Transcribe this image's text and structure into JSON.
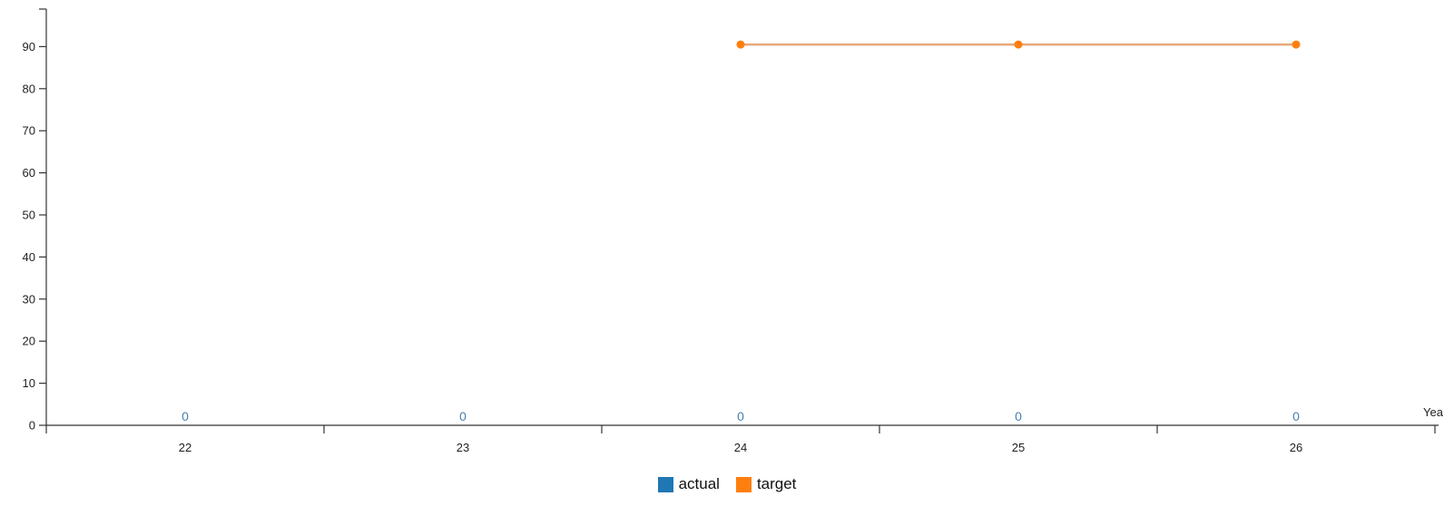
{
  "chart_data": {
    "type": "line",
    "x_label": "Yea",
    "categories": [
      "22",
      "23",
      "24",
      "25",
      "26"
    ],
    "y_ticks": [
      0,
      10,
      20,
      30,
      40,
      50,
      60,
      70,
      80,
      90
    ],
    "ylim": [
      0,
      100
    ],
    "grid": false,
    "legend_position": "bottom-center",
    "series": [
      {
        "name": "actual",
        "color": "#1f77b4",
        "values": [
          0,
          0,
          0,
          0,
          0
        ],
        "labels": [
          "0",
          "0",
          "0",
          "0",
          "0"
        ],
        "render": "labels"
      },
      {
        "name": "target",
        "color": "#ff7f0e",
        "line_color": "#e8a87c",
        "values": [
          null,
          null,
          90.5,
          90.5,
          90.5
        ],
        "render": "line"
      }
    ]
  }
}
